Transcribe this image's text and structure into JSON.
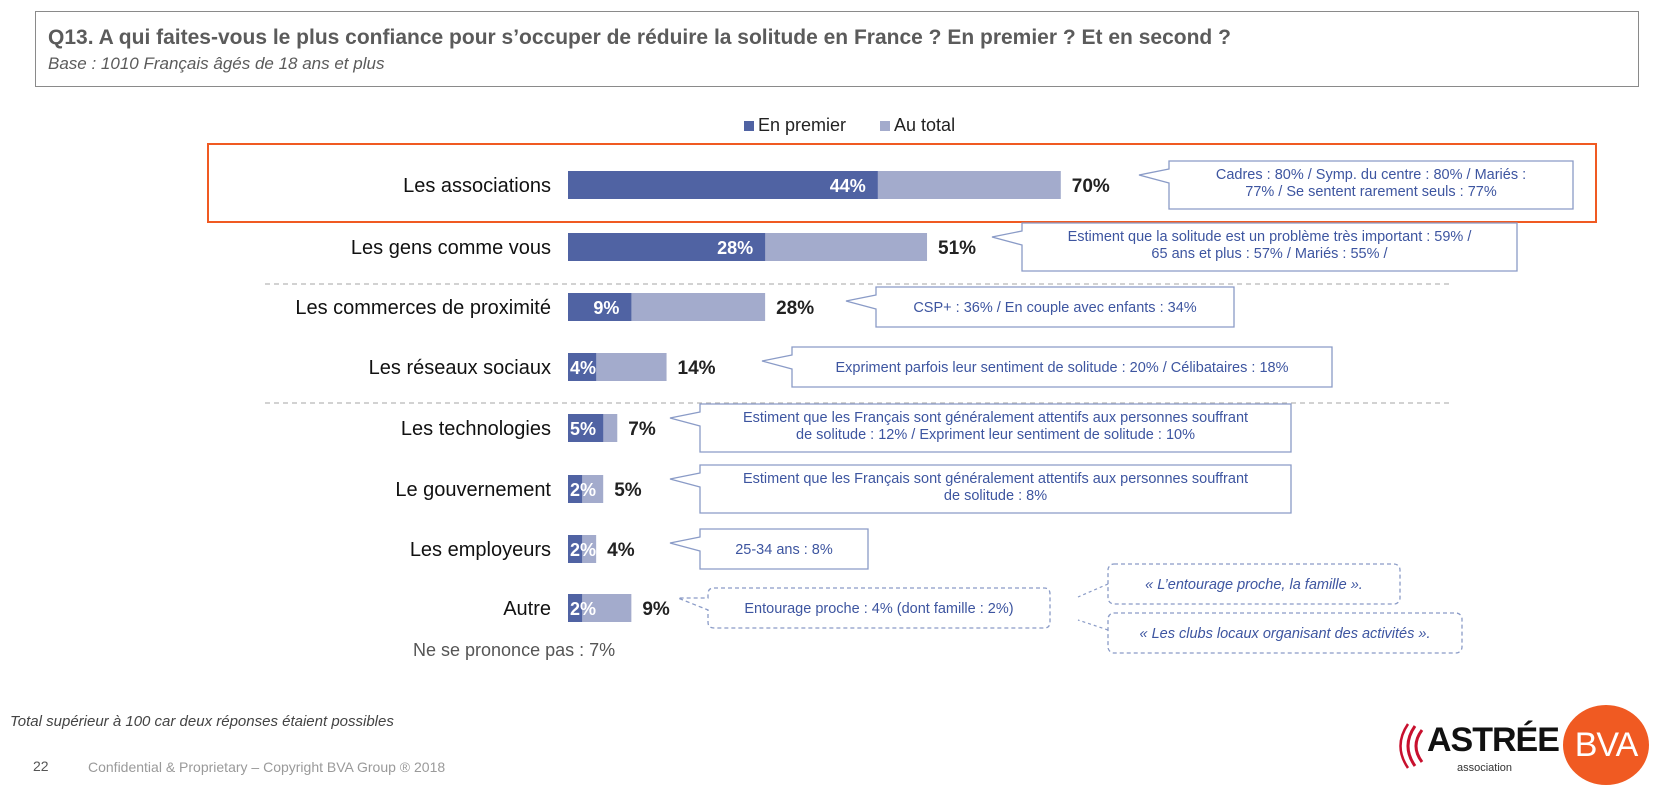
{
  "header": {
    "title": "Q13. A qui faites-vous le plus confiance pour s’occuper de réduire la solitude en France ? En premier ? Et en second ?",
    "base": "Base : 1010 Français âgés de 18 ans et plus"
  },
  "colors": {
    "premier": "#5063a3",
    "total": "#a3abcc",
    "highlight": "#f05a22",
    "callout_text": "#3d55a0",
    "callout_border": "#8a9bc7"
  },
  "chart_data": {
    "type": "bar",
    "orientation": "horizontal",
    "stacked": "overlay",
    "legend_position": "top",
    "series": [
      {
        "name": "En premier",
        "values": [
          44,
          28,
          9,
          4,
          5,
          2,
          2,
          2
        ]
      },
      {
        "name": "Au total",
        "values": [
          70,
          51,
          28,
          14,
          7,
          5,
          4,
          9
        ]
      }
    ],
    "categories": [
      "Les associations",
      "Les gens comme vous",
      "Les commerces de proximité",
      "Les réseaux sociaux",
      "Les technologies",
      "Le gouvernement",
      "Les employeurs",
      "Autre"
    ],
    "premier_labels": [
      "44%",
      "28%",
      "9%",
      "4%",
      "5%",
      "2%",
      "2%",
      "2%"
    ],
    "total_labels": [
      "70%",
      "51%",
      "28%",
      "14%",
      "7%",
      "5%",
      "4%",
      "9%"
    ],
    "callouts": [
      [
        "Cadres : 80% / Symp. du centre : 80% / Mariés :",
        "77% / Se sentent rarement seuls : 77%"
      ],
      [
        "Estiment que la solitude est un problème très important : 59% /",
        "65 ans et plus : 57% / Mariés : 55% /"
      ],
      [
        "CSP+ : 36% / En couple avec enfants : 34%"
      ],
      [
        "Expriment parfois leur sentiment de solitude : 20% / Célibataires : 18%"
      ],
      [
        "Estiment que les Français sont généralement attentifs aux personnes souffrant",
        "de solitude : 12% / Expriment leur sentiment de solitude : 10%"
      ],
      [
        "Estiment que les Français sont généralement attentifs aux personnes souffrant",
        "de solitude : 8%"
      ],
      [
        "25-34 ans : 8%"
      ],
      [
        "Entourage proche : 4% (dont famille : 2%)"
      ]
    ],
    "quotes": [
      "« L’entourage proche, la famille ».",
      "« Les clubs locaux organisant des activités »."
    ],
    "no_answer": "Ne se prononce pas : 7%",
    "highlighted_category": "Les associations"
  },
  "footer": {
    "note": "Total supérieur à 100 car deux réponses étaient possibles",
    "page_number": "22",
    "copyright": "Confidential & Proprietary – Copyright BVA Group ®  2018"
  },
  "logos": {
    "astree": "ASTRÉE",
    "astree_sub": "association",
    "bva": "BVA"
  }
}
